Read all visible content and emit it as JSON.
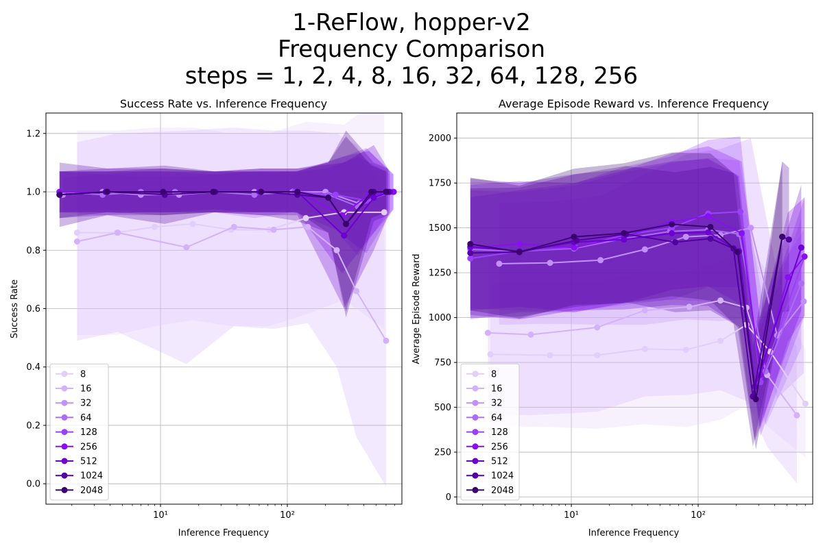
{
  "figure": {
    "title_lines": [
      "1-ReFlow, hopper-v2",
      "Frequency Comparison",
      "steps = 1, 2, 4, 8, 16, 32, 64, 128, 256"
    ]
  },
  "chart_data": [
    {
      "type": "line",
      "title": "Success Rate vs. Inference Frequency",
      "xlabel": "Inference Frequency",
      "ylabel": "Success Rate",
      "xscale": "log",
      "xlim": [
        1.25,
        800
      ],
      "ylim": [
        -0.07,
        1.27
      ],
      "yticks": [
        0.0,
        0.2,
        0.4,
        0.6,
        0.8,
        1.0,
        1.2
      ],
      "xticks": [
        {
          "value": 10,
          "label": "10¹"
        },
        {
          "value": 100,
          "label": "10²"
        }
      ],
      "grid": true,
      "legend_position": "lower-left",
      "series": [
        {
          "name": "8",
          "color": "#e2cdfb",
          "x": [
            2.2,
            4.5,
            9,
            18,
            36,
            72,
            140,
            280,
            580
          ],
          "y": [
            0.86,
            0.86,
            0.88,
            0.89,
            0.87,
            0.87,
            0.91,
            0.93,
            0.93
          ],
          "band": [
            0.35,
            0.35,
            0.34,
            0.33,
            0.33,
            0.33,
            0.33,
            0.3,
            0.4
          ]
        },
        {
          "name": "16",
          "color": "#d4b1fb",
          "x": [
            2.2,
            4.6,
            16,
            38,
            78,
            145,
            245,
            350,
            600
          ],
          "y": [
            0.83,
            0.86,
            0.81,
            0.88,
            0.87,
            0.88,
            0.8,
            0.66,
            0.49
          ],
          "band": [
            0.34,
            0.34,
            0.4,
            0.34,
            0.34,
            0.33,
            0.4,
            0.5,
            0.5
          ]
        },
        {
          "name": "32",
          "color": "#c290fb",
          "x": [
            1.7,
            3.5,
            7,
            14,
            27,
            55,
            110,
            200,
            370,
            650
          ],
          "y": [
            0.99,
            1.0,
            0.99,
            0.99,
            1.0,
            1.0,
            1.0,
            1.0,
            0.96,
            1.0
          ],
          "band": [
            0.06,
            0.06,
            0.06,
            0.06,
            0.06,
            0.07,
            0.06,
            0.08,
            0.16,
            0.06
          ]
        },
        {
          "name": "64",
          "color": "#ac6cf7",
          "x": [
            1.6,
            3.5,
            7,
            13,
            26,
            55,
            110,
            210,
            360,
            620
          ],
          "y": [
            1.0,
            0.99,
            1.0,
            1.0,
            1.0,
            0.99,
            1.0,
            0.99,
            0.95,
            1.0
          ],
          "band": [
            0.07,
            0.07,
            0.07,
            0.07,
            0.07,
            0.08,
            0.07,
            0.09,
            0.17,
            0.07
          ]
        },
        {
          "name": "128",
          "color": "#9b40fa",
          "x": [
            1.6,
            3.7,
            10.5,
            26,
            60,
            115,
            240,
            420,
            680
          ],
          "y": [
            1.0,
            1.0,
            1.0,
            1.0,
            1.0,
            1.0,
            0.99,
            0.97,
            1.0
          ],
          "band": [
            0.07,
            0.07,
            0.07,
            0.06,
            0.07,
            0.07,
            0.12,
            0.18,
            0.06
          ]
        },
        {
          "name": "256",
          "color": "#8710f0",
          "x": [
            1.6,
            3.7,
            10.5,
            26,
            60,
            120,
            270,
            440,
            690
          ],
          "y": [
            1.0,
            1.0,
            1.0,
            1.0,
            1.0,
            1.0,
            0.92,
            0.99,
            1.0
          ],
          "band": [
            0.07,
            0.07,
            0.07,
            0.07,
            0.07,
            0.07,
            0.2,
            0.15,
            0.06
          ]
        },
        {
          "name": "512",
          "color": "#6c00d2",
          "x": [
            1.6,
            3.7,
            10.5,
            26,
            62,
            120,
            280,
            480,
            640
          ],
          "y": [
            0.99,
            1.0,
            1.0,
            1.0,
            1.0,
            1.0,
            0.85,
            0.98,
            1.0
          ],
          "band": [
            0.08,
            0.08,
            0.08,
            0.07,
            0.08,
            0.08,
            0.25,
            0.18,
            0.07
          ]
        },
        {
          "name": "1024",
          "color": "#5200a0",
          "x": [
            1.6,
            3.8,
            10.8,
            27,
            62,
            120,
            210,
            290,
            480,
            620
          ],
          "y": [
            0.99,
            1.0,
            0.99,
            1.0,
            1.0,
            0.99,
            0.98,
            0.89,
            1.0,
            1.0
          ],
          "band": [
            0.11,
            0.08,
            0.1,
            0.07,
            0.08,
            0.09,
            0.12,
            0.32,
            0.1,
            0.08
          ]
        },
        {
          "name": "2048",
          "color": "#3a006f",
          "x": [
            1.6,
            3.8,
            10.5,
            26,
            62,
            120,
            210,
            290,
            460,
            600
          ],
          "y": [
            0.99,
            1.0,
            1.0,
            1.0,
            1.0,
            1.0,
            0.98,
            0.89,
            1.0,
            1.0
          ],
          "band": [
            0.08,
            0.07,
            0.08,
            0.07,
            0.07,
            0.07,
            0.12,
            0.3,
            0.09,
            0.07
          ]
        }
      ]
    },
    {
      "type": "line",
      "title": "Average Episode Reward vs. Inference Frequency",
      "xlabel": "Inference Frequency",
      "ylabel": "Average Episode Reward",
      "xscale": "log",
      "xlim": [
        1.25,
        800
      ],
      "ylim": [
        -40,
        2140
      ],
      "yticks": [
        0,
        250,
        500,
        750,
        1000,
        1250,
        1500,
        1750,
        2000
      ],
      "xticks": [
        {
          "value": 10,
          "label": "10¹"
        },
        {
          "value": 100,
          "label": "10²"
        }
      ],
      "grid": true,
      "legend_position": "lower-left",
      "series": [
        {
          "name": "8",
          "color": "#e2cdfb",
          "x": [
            2.3,
            6.8,
            16,
            38,
            80,
            150,
            240,
            370,
            700
          ],
          "y": [
            795,
            790,
            790,
            825,
            820,
            870,
            960,
            810,
            520
          ],
          "band": [
            400,
            400,
            410,
            420,
            430,
            440,
            450,
            430,
            300
          ]
        },
        {
          "name": "16",
          "color": "#d4b1fb",
          "x": [
            2.2,
            4.8,
            16,
            38,
            85,
            150,
            240,
            350,
            600
          ],
          "y": [
            915,
            905,
            945,
            1040,
            1060,
            1095,
            1055,
            680,
            455
          ],
          "band": [
            450,
            450,
            470,
            480,
            490,
            500,
            520,
            400,
            380
          ]
        },
        {
          "name": "32",
          "color": "#c290fb",
          "x": [
            2.7,
            6.8,
            17,
            38,
            80,
            150,
            260,
            420,
            680
          ],
          "y": [
            1300,
            1305,
            1320,
            1380,
            1450,
            1460,
            1500,
            900,
            1090
          ],
          "band": [
            340,
            340,
            360,
            420,
            460,
            480,
            500,
            350,
            400
          ]
        },
        {
          "name": "64",
          "color": "#ac6cf7",
          "x": [
            1.6,
            3.9,
            10.5,
            26,
            60,
            120,
            210,
            340,
            650
          ],
          "y": [
            1380,
            1370,
            1385,
            1440,
            1480,
            1490,
            1465,
            700,
            1190
          ],
          "band": [
            330,
            330,
            350,
            370,
            380,
            400,
            410,
            300,
            360
          ]
        },
        {
          "name": "128",
          "color": "#9b40fa",
          "x": [
            1.6,
            3.9,
            10.8,
            26,
            62,
            120,
            215,
            310,
            690
          ],
          "y": [
            1330,
            1370,
            1390,
            1460,
            1500,
            1580,
            1590,
            640,
            1340
          ],
          "band": [
            340,
            340,
            360,
            380,
            400,
            410,
            420,
            300,
            330
          ]
        },
        {
          "name": "256",
          "color": "#8710f0",
          "x": [
            1.6,
            3.9,
            10.5,
            26,
            62,
            120,
            220,
            310,
            510,
            690
          ],
          "y": [
            1390,
            1410,
            1390,
            1450,
            1535,
            1565,
            1470,
            680,
            1225,
            1340
          ],
          "band": [
            350,
            350,
            360,
            370,
            380,
            390,
            400,
            300,
            360,
            330
          ]
        },
        {
          "name": "512",
          "color": "#6c00d2",
          "x": [
            1.6,
            3.9,
            10.5,
            26,
            62,
            120,
            210,
            280,
            650
          ],
          "y": [
            1395,
            1370,
            1420,
            1435,
            1470,
            1475,
            1370,
            615,
            1390
          ],
          "band": [
            380,
            380,
            380,
            390,
            400,
            410,
            420,
            300,
            350
          ]
        },
        {
          "name": "1024",
          "color": "#5200a0",
          "x": [
            1.6,
            3.9,
            11,
            27,
            66,
            125,
            190,
            270,
            460,
            520
          ],
          "y": [
            1360,
            1365,
            1430,
            1465,
            1420,
            1440,
            1385,
            560,
            1450,
            1435
          ],
          "band": [
            360,
            360,
            370,
            380,
            390,
            400,
            420,
            280,
            420,
            400
          ]
        },
        {
          "name": "2048",
          "color": "#3a006f",
          "x": [
            1.6,
            3.9,
            10.5,
            26,
            62,
            125,
            205,
            285,
            460
          ],
          "y": [
            1410,
            1365,
            1450,
            1470,
            1520,
            1505,
            1365,
            545,
            1450
          ],
          "band": [
            370,
            370,
            380,
            390,
            400,
            410,
            420,
            280,
            420
          ]
        }
      ]
    }
  ]
}
